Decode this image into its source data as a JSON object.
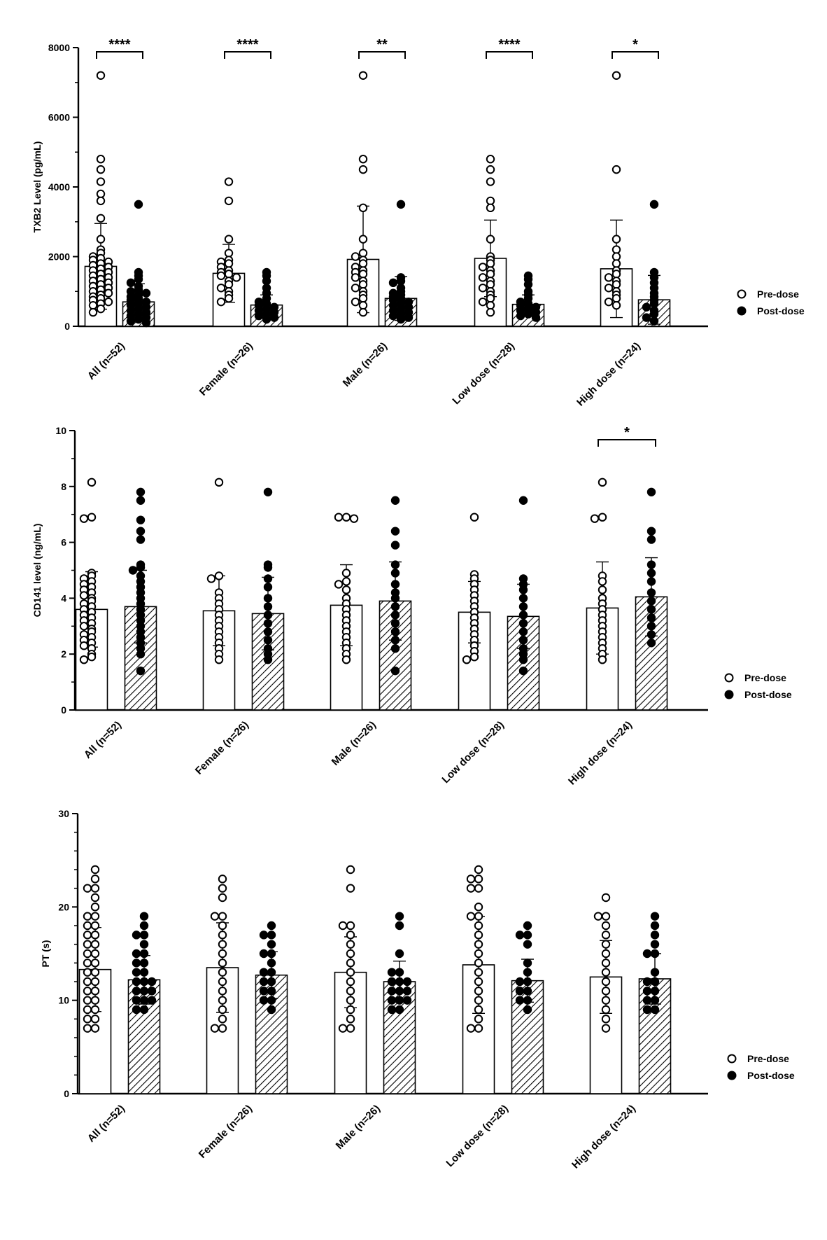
{
  "chart_data": [
    {
      "type": "bar",
      "ylabel": "TXB2 Level (pg/mL)",
      "ylim": [
        0,
        8000
      ],
      "yticks": [
        0,
        2000,
        4000,
        6000,
        8000
      ],
      "categories": [
        "All (n=52)",
        "Female (n=26)",
        "Male (n=26)",
        "Low dose (n=28)",
        "High dose (n=24)"
      ],
      "legend": {
        "position": "right",
        "entries": [
          "Pre-dose",
          "Post-dose"
        ]
      },
      "series": [
        {
          "name": "Pre-dose",
          "fill": "#ffffff",
          "marker": "open-circle",
          "values": [
            1720,
            1520,
            1920,
            1950,
            1650
          ],
          "sd_upper": [
            2950,
            2350,
            3450,
            3050,
            3050
          ],
          "sd_lower": [
            490,
            690,
            390,
            850,
            250
          ],
          "points": [
            [
              7200,
              4800,
              4500,
              4150,
              3800,
              3600,
              3100,
              2500,
              2200,
              2100,
              2000,
              1950,
              1900,
              1850,
              1800,
              1750,
              1700,
              1650,
              1600,
              1550,
              1500,
              1450,
              1400,
              1350,
              1300,
              1250,
              1200,
              1150,
              1100,
              1050,
              1000,
              950,
              900,
              850,
              800,
              750,
              700,
              650,
              600,
              500,
              400
            ],
            [
              4150,
              3600,
              2500,
              2100,
              1900,
              1850,
              1800,
              1700,
              1600,
              1550,
              1500,
              1450,
              1400,
              1300,
              1200,
              1100,
              1000,
              900,
              800,
              700
            ],
            [
              7200,
              4800,
              4500,
              3400,
              2500,
              2100,
              2000,
              1900,
              1800,
              1700,
              1600,
              1550,
              1500,
              1400,
              1300,
              1200,
              1100,
              1000,
              900,
              800,
              700,
              600,
              400
            ],
            [
              4800,
              4500,
              4150,
              3600,
              3400,
              2500,
              2000,
              1900,
              1800,
              1700,
              1600,
              1500,
              1400,
              1300,
              1200,
              1100,
              1000,
              900,
              800,
              700,
              600,
              400
            ],
            [
              7200,
              4500,
              2500,
              2200,
              2000,
              1800,
              1600,
              1500,
              1400,
              1300,
              1200,
              1100,
              1000,
              900,
              800,
              700,
              600
            ]
          ]
        },
        {
          "name": "Post-dose",
          "fill": "hatch",
          "marker": "filled-circle",
          "values": [
            700,
            610,
            800,
            630,
            760
          ],
          "sd_upper": [
            1220,
            900,
            1430,
            900,
            1460
          ],
          "sd_lower": [
            180,
            320,
            170,
            360,
            60
          ],
          "points": [
            [
              3500,
              1550,
              1450,
              1350,
              1250,
              1150,
              1050,
              1000,
              950,
              900,
              850,
              800,
              750,
              700,
              650,
              600,
              550,
              500,
              450,
              400,
              350,
              300,
              250,
              200,
              150,
              100
            ],
            [
              1550,
              1450,
              1300,
              1100,
              950,
              800,
              700,
              650,
              600,
              550,
              500,
              450,
              400,
              350,
              300,
              250,
              200
            ],
            [
              3500,
              1400,
              1300,
              1250,
              1100,
              1000,
              950,
              900,
              850,
              800,
              750,
              700,
              650,
              600,
              550,
              500,
              450,
              400,
              350,
              300,
              250,
              200
            ],
            [
              1450,
              1350,
              1200,
              1000,
              900,
              800,
              700,
              650,
              600,
              550,
              500,
              450,
              400,
              350,
              300,
              250
            ],
            [
              3500,
              1550,
              1400,
              1250,
              1100,
              950,
              850,
              750,
              650,
              550,
              450,
              350,
              250,
              150
            ]
          ]
        }
      ],
      "significance": [
        {
          "category": 0,
          "label": "****"
        },
        {
          "category": 1,
          "label": "****"
        },
        {
          "category": 2,
          "label": "**"
        },
        {
          "category": 3,
          "label": "****"
        },
        {
          "category": 4,
          "label": "*"
        }
      ]
    },
    {
      "type": "bar",
      "ylabel": "CD141 level (ng/mL)",
      "ylim": [
        0,
        10
      ],
      "yticks": [
        0,
        2,
        4,
        6,
        8,
        10
      ],
      "categories": [
        "All (n=52)",
        "Female (n=26)",
        "Male (n=26)",
        "Low dose (n=28)",
        "High dose (n=24)"
      ],
      "legend": {
        "position": "right",
        "entries": [
          "Pre-dose",
          "Post-dose"
        ]
      },
      "series": [
        {
          "name": "Pre-dose",
          "fill": "#ffffff",
          "marker": "open-circle",
          "values": [
            3.6,
            3.55,
            3.75,
            3.5,
            3.65
          ],
          "sd_upper": [
            4.95,
            4.8,
            5.2,
            4.6,
            5.3
          ],
          "sd_lower": [
            2.25,
            2.3,
            2.3,
            2.4,
            2.0
          ],
          "points": [
            [
              8.15,
              6.9,
              6.85,
              4.9,
              4.8,
              4.7,
              4.6,
              4.5,
              4.4,
              4.3,
              4.2,
              4.1,
              4.0,
              3.9,
              3.8,
              3.7,
              3.6,
              3.5,
              3.4,
              3.3,
              3.2,
              3.1,
              3.0,
              2.9,
              2.8,
              2.7,
              2.6,
              2.5,
              2.4,
              2.3,
              2.2,
              2.0,
              1.9,
              1.8
            ],
            [
              8.15,
              4.8,
              4.7,
              4.2,
              4.0,
              3.8,
              3.6,
              3.4,
              3.2,
              3.0,
              2.8,
              2.6,
              2.4,
              2.2,
              2.0,
              1.8
            ],
            [
              6.9,
              6.9,
              6.85,
              4.9,
              4.6,
              4.5,
              4.3,
              4.0,
              3.8,
              3.6,
              3.4,
              3.2,
              3.0,
              2.8,
              2.6,
              2.4,
              2.2,
              2.0,
              1.8
            ],
            [
              6.9,
              4.85,
              4.7,
              4.5,
              4.3,
              4.1,
              3.9,
              3.7,
              3.5,
              3.3,
              3.1,
              2.9,
              2.7,
              2.5,
              2.3,
              2.1,
              1.9,
              1.8
            ],
            [
              8.15,
              6.9,
              6.85,
              4.8,
              4.6,
              4.3,
              4.0,
              3.8,
              3.6,
              3.4,
              3.2,
              3.0,
              2.8,
              2.6,
              2.4,
              2.2,
              2.0,
              1.8
            ]
          ]
        },
        {
          "name": "Post-dose",
          "fill": "hatch",
          "marker": "filled-circle",
          "values": [
            3.7,
            3.45,
            3.9,
            3.35,
            4.05
          ],
          "sd_upper": [
            5.0,
            4.75,
            5.3,
            4.5,
            5.45
          ],
          "sd_lower": [
            2.4,
            2.15,
            2.5,
            2.2,
            2.65
          ],
          "points": [
            [
              7.8,
              7.5,
              6.8,
              6.4,
              6.1,
              5.2,
              5.1,
              5.0,
              4.8,
              4.6,
              4.4,
              4.2,
              4.0,
              3.8,
              3.6,
              3.4,
              3.2,
              3.0,
              2.8,
              2.6,
              2.4,
              2.2,
              2.0,
              1.4
            ],
            [
              7.8,
              5.2,
              5.1,
              4.7,
              4.4,
              4.0,
              3.7,
              3.4,
              3.1,
              2.8,
              2.5,
              2.2,
              2.0,
              1.8
            ],
            [
              7.5,
              6.4,
              5.9,
              5.2,
              4.9,
              4.5,
              4.2,
              4.0,
              3.7,
              3.4,
              3.1,
              2.8,
              2.5,
              2.2,
              1.4
            ],
            [
              7.5,
              4.7,
              4.5,
              4.3,
              4.0,
              3.7,
              3.4,
              3.1,
              2.8,
              2.5,
              2.2,
              2.0,
              1.8,
              1.4
            ],
            [
              7.8,
              6.4,
              6.1,
              5.2,
              4.9,
              4.6,
              4.2,
              3.9,
              3.6,
              3.3,
              3.0,
              2.7,
              2.4
            ]
          ]
        }
      ],
      "significance": [
        {
          "category": 4,
          "label": "*"
        }
      ]
    },
    {
      "type": "bar",
      "ylabel": "PT (s)",
      "ylim": [
        0,
        30
      ],
      "yticks": [
        0,
        10,
        20,
        30
      ],
      "categories": [
        "All (n=52)",
        "Female (n=26)",
        "Male (n=26)",
        "Low dose (n=28)",
        "High dose (n=24)"
      ],
      "legend": {
        "position": "right",
        "entries": [
          "Pre-dose",
          "Post-dose"
        ]
      },
      "series": [
        {
          "name": "Pre-dose",
          "fill": "#ffffff",
          "marker": "open-circle",
          "values": [
            13.3,
            13.5,
            13.0,
            13.8,
            12.5
          ],
          "sd_upper": [
            17.8,
            18.3,
            16.8,
            19.0,
            16.4
          ],
          "sd_lower": [
            8.8,
            8.7,
            9.2,
            8.6,
            8.6
          ],
          "points": [
            [
              24,
              23,
              22,
              22,
              21,
              20,
              19,
              19,
              18,
              18,
              17,
              17,
              16,
              16,
              15,
              15,
              14,
              14,
              13,
              13,
              12,
              12,
              11,
              11,
              10,
              10,
              9,
              9,
              8,
              8,
              7,
              7
            ],
            [
              23,
              22,
              21,
              19,
              19,
              18,
              17,
              16,
              15,
              14,
              13,
              12,
              11,
              10,
              9,
              8,
              7,
              7
            ],
            [
              24,
              22,
              18,
              18,
              17,
              16,
              15,
              14,
              13,
              12,
              11,
              10,
              9,
              8,
              7,
              7
            ],
            [
              24,
              23,
              23,
              22,
              22,
              20,
              19,
              19,
              18,
              17,
              16,
              15,
              14,
              13,
              12,
              11,
              10,
              9,
              8,
              7,
              7
            ],
            [
              21,
              19,
              19,
              18,
              17,
              16,
              15,
              14,
              13,
              12,
              11,
              10,
              9,
              8,
              7
            ]
          ]
        },
        {
          "name": "Post-dose",
          "fill": "hatch",
          "marker": "filled-circle",
          "values": [
            12.2,
            12.7,
            12.0,
            12.1,
            12.3
          ],
          "sd_upper": [
            14.8,
            15.2,
            14.2,
            14.4,
            15.0
          ],
          "sd_lower": [
            9.6,
            10.2,
            9.8,
            9.8,
            9.6
          ],
          "points": [
            [
              19,
              18,
              17,
              17,
              16,
              15,
              15,
              14,
              14,
              13,
              13,
              12,
              12,
              12,
              11,
              11,
              11,
              10,
              10,
              10,
              9,
              9
            ],
            [
              18,
              17,
              17,
              16,
              15,
              15,
              14,
              13,
              13,
              12,
              12,
              11,
              11,
              10,
              10,
              9
            ],
            [
              19,
              18,
              15,
              13,
              13,
              12,
              12,
              12,
              11,
              11,
              11,
              10,
              10,
              10,
              9,
              9
            ],
            [
              18,
              17,
              17,
              16,
              14,
              13,
              12,
              12,
              11,
              11,
              10,
              10,
              9
            ],
            [
              19,
              18,
              17,
              16,
              15,
              15,
              13,
              12,
              12,
              11,
              11,
              10,
              10,
              9,
              9
            ]
          ]
        }
      ],
      "significance": []
    }
  ]
}
